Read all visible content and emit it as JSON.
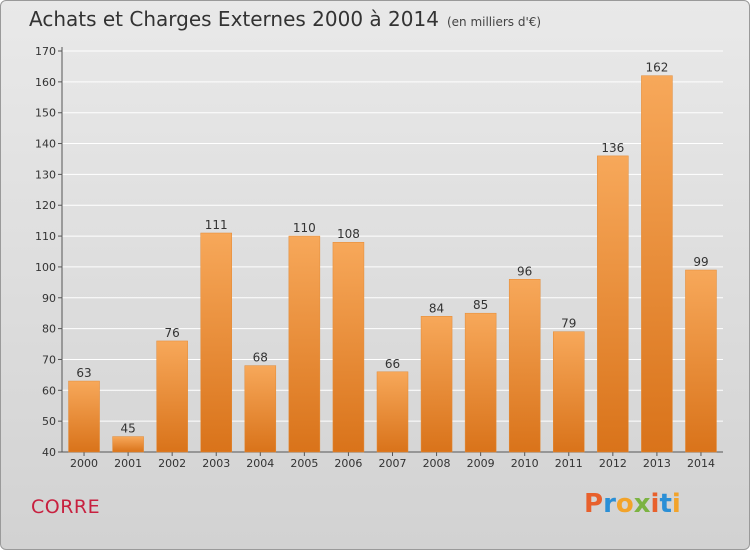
{
  "header": {
    "title": "Achats et Charges Externes 2000 à 2014",
    "subtitle": "(en milliers d'€)"
  },
  "footer": {
    "town": "CORRE",
    "brand": "Proxiti"
  },
  "colors": {
    "bar_light": "#f7a85a",
    "bar_dark": "#d9731a",
    "town": "#c8203f",
    "brand_letters": [
      "#e8602c",
      "#2a8fd6",
      "#f2a32a",
      "#7cb342",
      "#e8602c",
      "#2a8fd6",
      "#f2a32a"
    ]
  },
  "chart_data": {
    "type": "bar",
    "title": "Achats et Charges Externes 2000 à 2014",
    "subtitle": "(en milliers d'€)",
    "categories": [
      "2000",
      "2001",
      "2002",
      "2003",
      "2004",
      "2005",
      "2006",
      "2007",
      "2008",
      "2009",
      "2010",
      "2011",
      "2012",
      "2013",
      "2014"
    ],
    "values": [
      63,
      45,
      76,
      111,
      68,
      110,
      108,
      66,
      84,
      85,
      96,
      79,
      136,
      162,
      99
    ],
    "ylim": [
      40,
      170
    ],
    "yticks": [
      40,
      50,
      60,
      70,
      80,
      90,
      100,
      110,
      120,
      130,
      140,
      150,
      160,
      170
    ],
    "xlabel": "",
    "ylabel": "",
    "grid": true
  }
}
